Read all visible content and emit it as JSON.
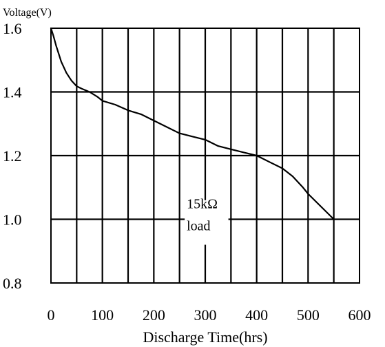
{
  "chart_data": {
    "type": "line",
    "title": "",
    "xlabel": "Discharge Time(hrs)",
    "ylabel": "Voltage(V)",
    "xlim": [
      0,
      600
    ],
    "ylim": [
      0.8,
      1.6
    ],
    "x_ticks": [
      0,
      100,
      200,
      300,
      400,
      500,
      600
    ],
    "x_tick_labels": [
      "0",
      "100",
      "200",
      "300",
      "400",
      "500",
      "600"
    ],
    "y_ticks": [
      0.8,
      1.0,
      1.2,
      1.4,
      1.6
    ],
    "y_tick_labels": [
      "0.8",
      "1.0",
      "1.2",
      "1.4",
      "1.6"
    ],
    "x_gridlines": [
      50,
      100,
      150,
      200,
      250,
      300,
      350,
      400,
      450,
      500,
      550
    ],
    "grid": true,
    "annotation": {
      "line1": "15kΩ",
      "line2": "load"
    },
    "series": [
      {
        "x": [
          0,
          5,
          10,
          15,
          20,
          30,
          40,
          50,
          60,
          75,
          90,
          100,
          125,
          150,
          175,
          200,
          225,
          250,
          275,
          300,
          325,
          350,
          375,
          400,
          425,
          450,
          470,
          490,
          500,
          525,
          550
        ],
        "values": [
          1.6,
          1.575,
          1.545,
          1.52,
          1.495,
          1.46,
          1.435,
          1.418,
          1.41,
          1.4,
          1.385,
          1.372,
          1.36,
          1.342,
          1.33,
          1.31,
          1.29,
          1.27,
          1.26,
          1.25,
          1.23,
          1.22,
          1.21,
          1.2,
          1.18,
          1.16,
          1.135,
          1.1,
          1.08,
          1.04,
          1.0
        ]
      }
    ]
  }
}
